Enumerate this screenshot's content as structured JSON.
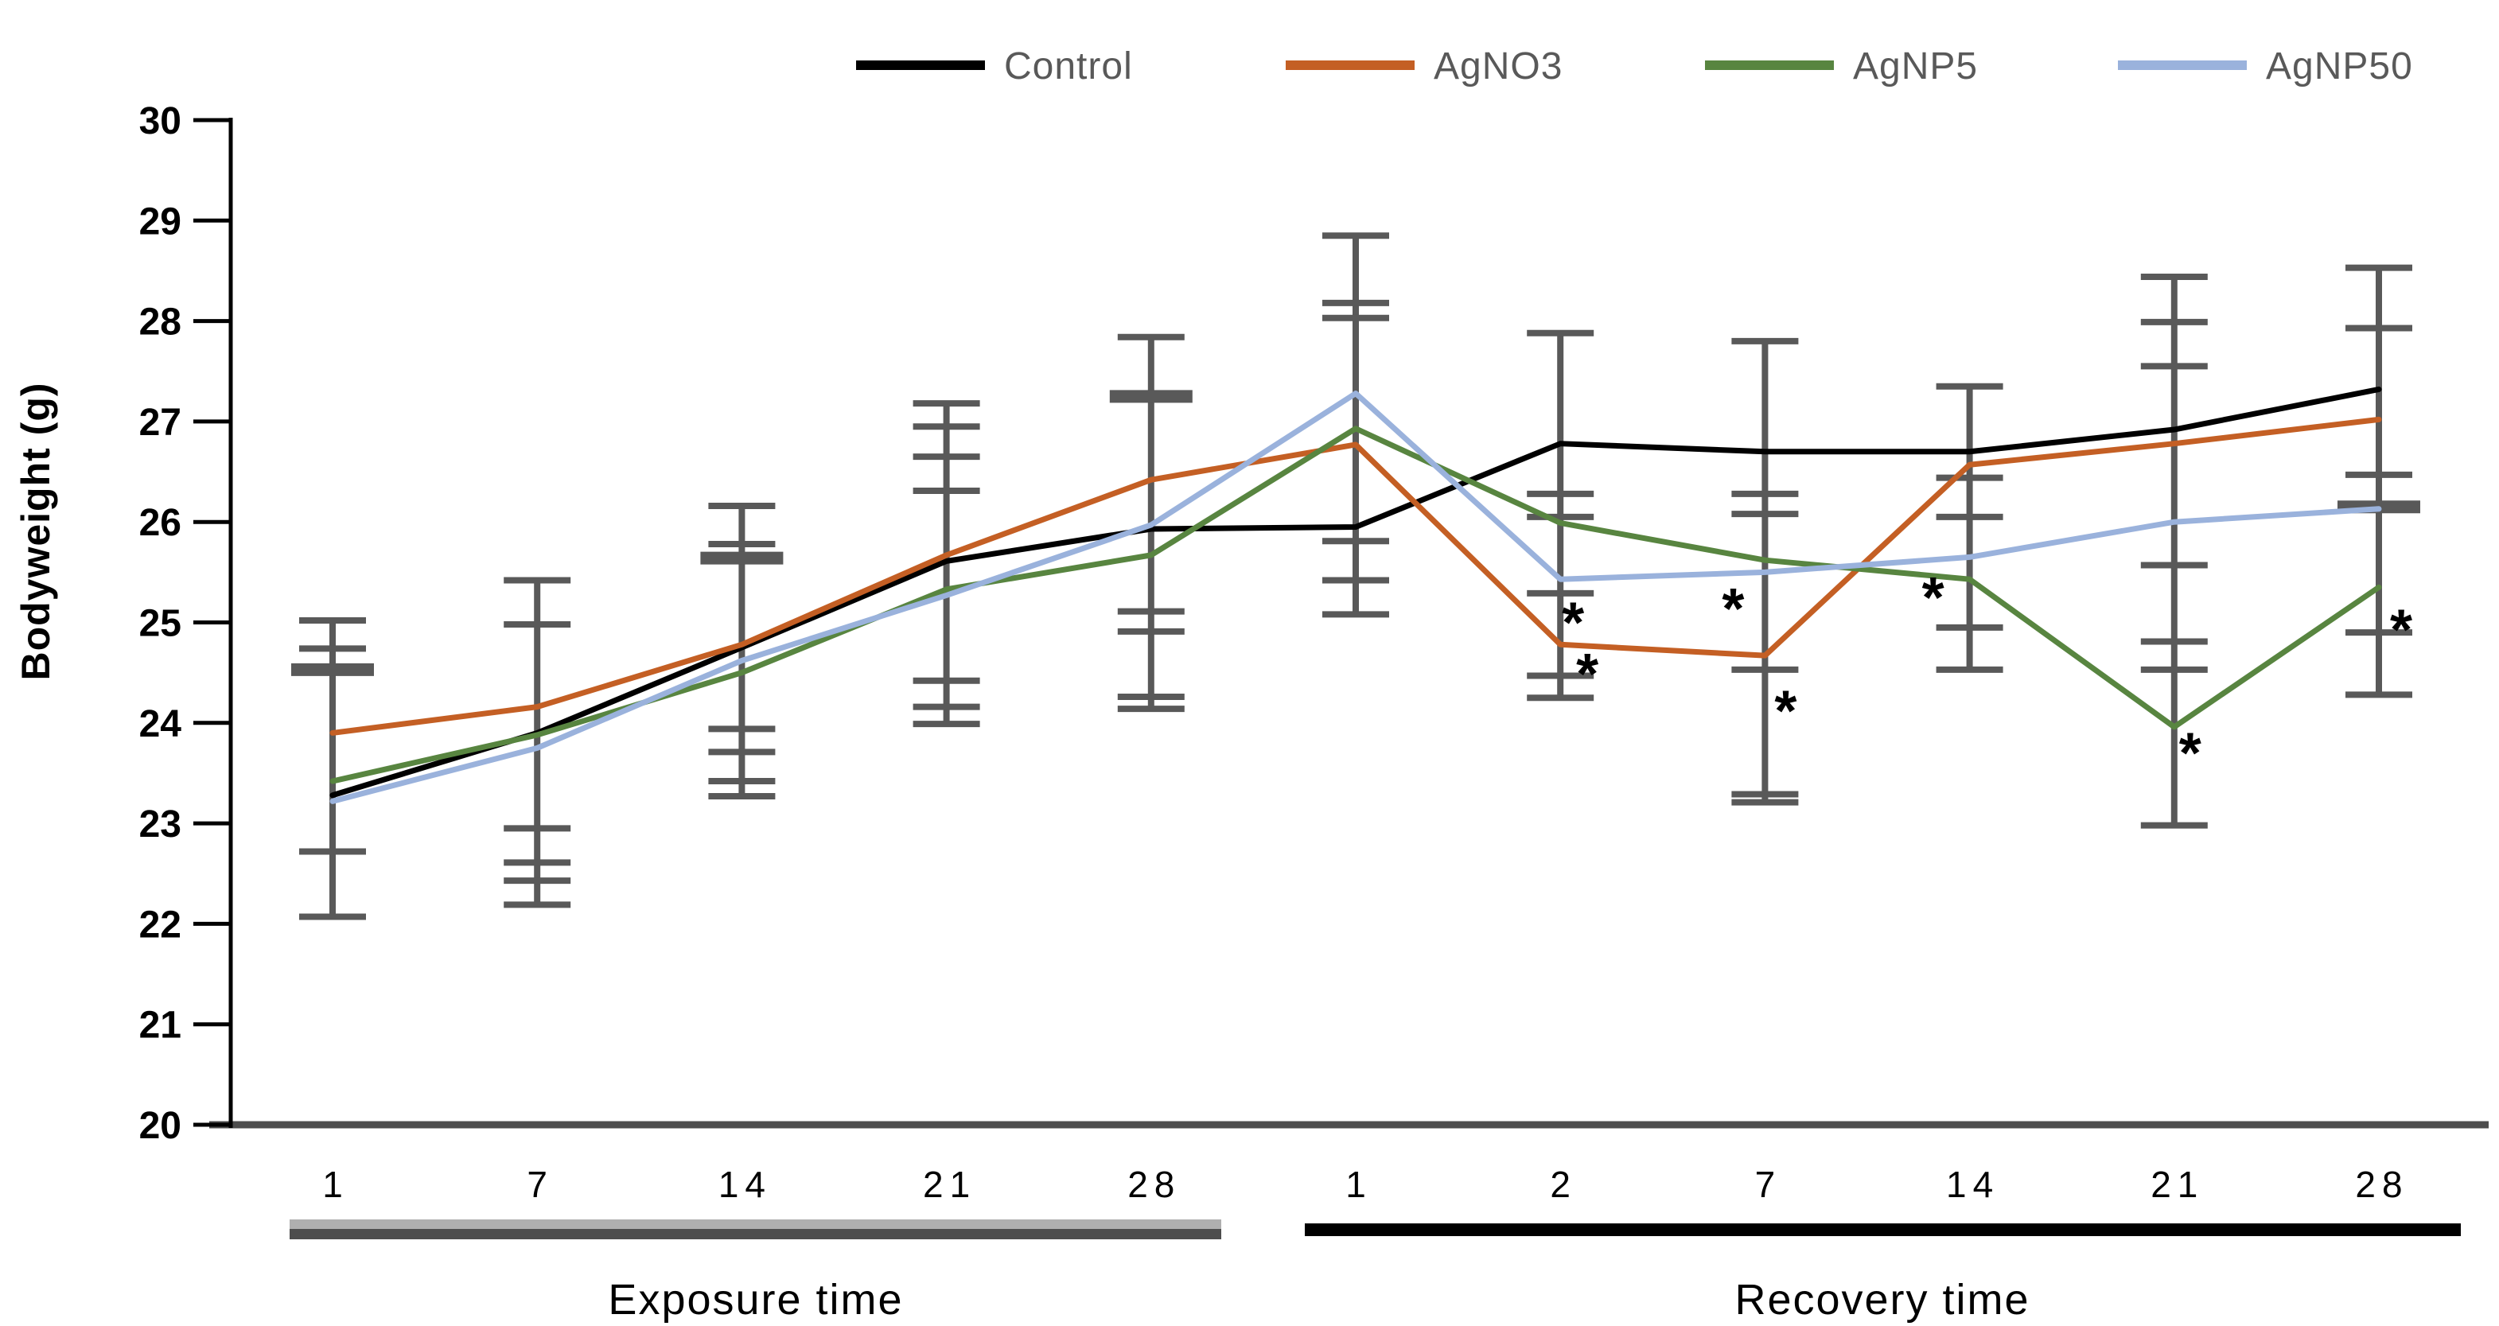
{
  "figure": {
    "ylabel": "Bodyweight (g)",
    "exposure_group_label": "Exposure time",
    "recovery_group_label": "Recovery time"
  },
  "colors": {
    "control": "#000000",
    "agno3": "#C45F24",
    "agnp5": "#588540",
    "agnp50": "#9AB2DC",
    "error_bar": "#595959",
    "axis": "#404040",
    "x_baseline": "#4D4D4D",
    "legend_text": "#595959",
    "exposure_bar_top": "#AFAFAF",
    "exposure_bar_bottom": "#4D4D4D",
    "recovery_bar": "#000000",
    "background": "#FFFFFF"
  },
  "chart_data": {
    "type": "line",
    "title": "",
    "xlabel": "",
    "ylabel": "Bodyweight (g)",
    "ylim": [
      20,
      30
    ],
    "yticks": [
      20,
      21,
      22,
      23,
      24,
      25,
      26,
      27,
      28,
      29,
      30
    ],
    "grid": false,
    "legend_position": "top",
    "x_labels": [
      "1",
      "7",
      "14",
      "21",
      "28",
      "1",
      "2",
      "7",
      "14",
      "21",
      "28"
    ],
    "groups": [
      {
        "label": "Exposure time",
        "from": 0,
        "to": 4
      },
      {
        "label": "Recovery time",
        "from": 5,
        "to": 10
      }
    ],
    "series": [
      {
        "name": "Control",
        "color": "#000000",
        "values": [
          23.28,
          23.9,
          24.75,
          25.61,
          25.93,
          25.95,
          26.78,
          26.7,
          26.7,
          26.92,
          27.32
        ]
      },
      {
        "name": "AgNO3",
        "color": "#C45F24",
        "values": [
          23.9,
          24.16,
          24.78,
          25.67,
          26.42,
          26.77,
          24.78,
          24.67,
          26.57,
          26.78,
          27.02
        ]
      },
      {
        "name": "AgNP5",
        "color": "#588540",
        "values": [
          23.42,
          23.88,
          24.5,
          25.33,
          25.67,
          26.93,
          25.99,
          25.62,
          25.43,
          23.96,
          25.35
        ]
      },
      {
        "name": "AgNP50",
        "color": "#9AB2DC",
        "values": [
          23.22,
          23.75,
          24.62,
          25.27,
          25.97,
          27.28,
          25.43,
          25.5,
          25.65,
          26.0,
          26.13
        ]
      }
    ],
    "error_bars": [
      {
        "i": 0,
        "lo": 22.07,
        "hi": 25.02,
        "caps": [
          {
            "v": 25.02
          },
          {
            "v": 24.74
          },
          {
            "v": 24.53,
            "thick": true
          },
          {
            "v": 22.72
          },
          {
            "v": 22.07
          }
        ]
      },
      {
        "i": 1,
        "lo": 22.19,
        "hi": 25.42,
        "caps": [
          {
            "v": 25.42
          },
          {
            "v": 24.98
          },
          {
            "v": 22.95
          },
          {
            "v": 22.61
          },
          {
            "v": 22.43
          },
          {
            "v": 22.19
          }
        ]
      },
      {
        "i": 2,
        "lo": 23.27,
        "hi": 26.16,
        "caps": [
          {
            "v": 26.16
          },
          {
            "v": 25.78
          },
          {
            "v": 25.64,
            "thick": true
          },
          {
            "v": 23.94
          },
          {
            "v": 23.71
          },
          {
            "v": 23.42
          },
          {
            "v": 23.27
          }
        ]
      },
      {
        "i": 3,
        "lo": 23.99,
        "hi": 27.18,
        "caps": [
          {
            "v": 27.18
          },
          {
            "v": 26.95
          },
          {
            "v": 26.65
          },
          {
            "v": 26.31
          },
          {
            "v": 24.42
          },
          {
            "v": 24.16
          },
          {
            "v": 23.99
          }
        ]
      },
      {
        "i": 4,
        "lo": 24.14,
        "hi": 27.84,
        "caps": [
          {
            "v": 27.84
          },
          {
            "v": 27.25,
            "thick": true
          },
          {
            "v": 25.11
          },
          {
            "v": 24.91
          },
          {
            "v": 24.26
          },
          {
            "v": 24.14
          }
        ]
      },
      {
        "i": 5,
        "lo": 25.08,
        "hi": 28.85,
        "caps": [
          {
            "v": 28.85
          },
          {
            "v": 28.18
          },
          {
            "v": 28.03
          },
          {
            "v": 25.81
          },
          {
            "v": 25.42
          },
          {
            "v": 25.08
          }
        ]
      },
      {
        "i": 6,
        "lo": 24.25,
        "hi": 27.88,
        "caps": [
          {
            "v": 27.88
          },
          {
            "v": 26.28
          },
          {
            "v": 26.05
          },
          {
            "v": 25.29
          },
          {
            "v": 24.47
          },
          {
            "v": 24.25
          }
        ]
      },
      {
        "i": 7,
        "lo": 23.21,
        "hi": 27.8,
        "caps": [
          {
            "v": 27.8
          },
          {
            "v": 26.28
          },
          {
            "v": 26.08
          },
          {
            "v": 24.53
          },
          {
            "v": 23.29
          },
          {
            "v": 23.21
          }
        ]
      },
      {
        "i": 8,
        "lo": 24.53,
        "hi": 27.35,
        "caps": [
          {
            "v": 27.35
          },
          {
            "v": 26.44
          },
          {
            "v": 26.05
          },
          {
            "v": 24.95
          },
          {
            "v": 24.53
          }
        ]
      },
      {
        "i": 9,
        "lo": 22.98,
        "hi": 28.44,
        "caps": [
          {
            "v": 28.44
          },
          {
            "v": 27.99
          },
          {
            "v": 27.55
          },
          {
            "v": 25.57
          },
          {
            "v": 24.81
          },
          {
            "v": 24.53
          },
          {
            "v": 22.98
          }
        ]
      },
      {
        "i": 10,
        "lo": 24.28,
        "hi": 28.53,
        "caps": [
          {
            "v": 28.53
          },
          {
            "v": 27.93
          },
          {
            "v": 26.47
          },
          {
            "v": 26.15,
            "thick": true
          },
          {
            "v": 24.9
          },
          {
            "v": 24.28
          }
        ]
      }
    ],
    "significance_marks": [
      {
        "i": 6,
        "dx": 16,
        "v": 25.04,
        "symbol": "*"
      },
      {
        "i": 6,
        "dx": 34,
        "v": 24.53,
        "symbol": "*"
      },
      {
        "i": 7,
        "dx": -40,
        "v": 25.18,
        "symbol": "*"
      },
      {
        "i": 7,
        "dx": 26,
        "v": 24.16,
        "symbol": "*"
      },
      {
        "i": 8,
        "dx": -46,
        "v": 25.29,
        "symbol": "*"
      },
      {
        "i": 9,
        "dx": 20,
        "v": 23.74,
        "symbol": "*"
      },
      {
        "i": 10,
        "dx": 28,
        "v": 24.97,
        "symbol": "*"
      }
    ]
  }
}
